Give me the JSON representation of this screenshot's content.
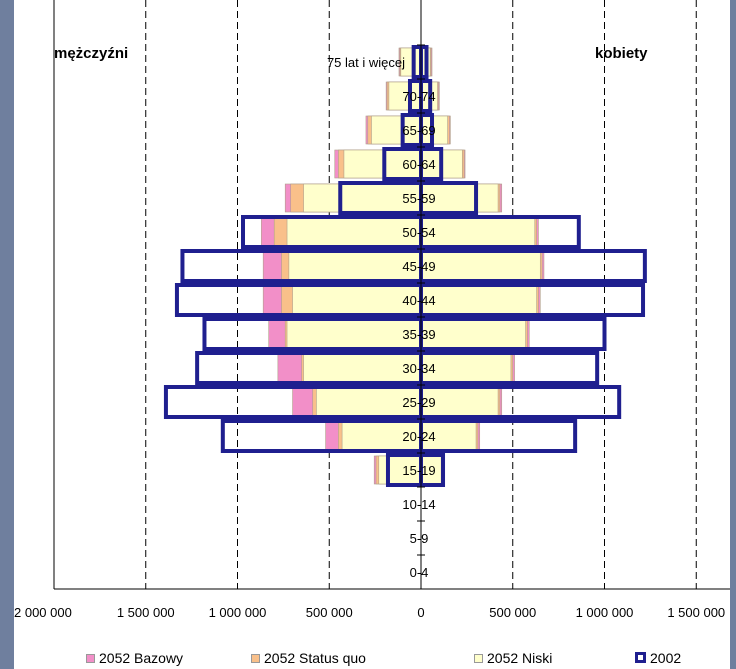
{
  "chart_data": {
    "type": "bar",
    "orientation": "horizontal",
    "title": "",
    "left_label": "mężczyźni",
    "right_label": "kobiety",
    "categories": [
      "0-4",
      "5-9",
      "10-14",
      "15-19",
      "20-24",
      "25-29",
      "30-34",
      "35-39",
      "40-44",
      "45-49",
      "50-54",
      "55-59",
      "60-64",
      "65-69",
      "70-74",
      "75 lat i więcej"
    ],
    "xlim": [
      -2000000,
      1500000
    ],
    "x_ticks": [
      -2000000,
      -1500000,
      -1000000,
      -500000,
      0,
      500000,
      1000000,
      1500000
    ],
    "x_tick_labels": [
      "2 000 000",
      "1 500 000",
      "1 000 000",
      "500 000",
      "0",
      "500 000",
      "1 000 000",
      "1 500 000"
    ],
    "grid": "vertical dashed",
    "legend_position": "bottom",
    "series": [
      {
        "name": "2052 Bazowy",
        "color": "#f28fc8",
        "men": [
          0,
          0,
          0,
          255000,
          520000,
          700000,
          780000,
          830000,
          860000,
          860000,
          870000,
          740000,
          470000,
          300000,
          190000,
          120000
        ],
        "women": [
          0,
          0,
          0,
          120000,
          320000,
          440000,
          510000,
          590000,
          650000,
          670000,
          640000,
          440000,
          240000,
          160000,
          100000,
          60000
        ]
      },
      {
        "name": "2052 Status quo",
        "color": "#f9c08a",
        "men": [
          0,
          0,
          0,
          245000,
          450000,
          590000,
          650000,
          740000,
          760000,
          760000,
          800000,
          710000,
          450000,
          290000,
          185000,
          115000
        ],
        "women": [
          0,
          0,
          0,
          115000,
          310000,
          430000,
          500000,
          580000,
          640000,
          660000,
          630000,
          430000,
          235000,
          155000,
          95000,
          55000
        ]
      },
      {
        "name": "2052 Niski",
        "color": "#ffffcc",
        "men": [
          0,
          0,
          0,
          230000,
          430000,
          570000,
          640000,
          730000,
          700000,
          720000,
          730000,
          640000,
          420000,
          270000,
          175000,
          110000
        ],
        "women": [
          0,
          0,
          0,
          110000,
          300000,
          420000,
          490000,
          570000,
          630000,
          650000,
          620000,
          420000,
          225000,
          145000,
          90000,
          50000
        ]
      },
      {
        "name": "2002",
        "color": "#1f1f8f",
        "men": [
          0,
          0,
          0,
          180000,
          1080000,
          1390000,
          1220000,
          1180000,
          1330000,
          1300000,
          970000,
          440000,
          200000,
          100000,
          60000,
          40000
        ],
        "women": [
          0,
          0,
          0,
          120000,
          840000,
          1080000,
          960000,
          1000000,
          1210000,
          1220000,
          860000,
          300000,
          110000,
          60000,
          50000,
          30000
        ]
      }
    ]
  }
}
